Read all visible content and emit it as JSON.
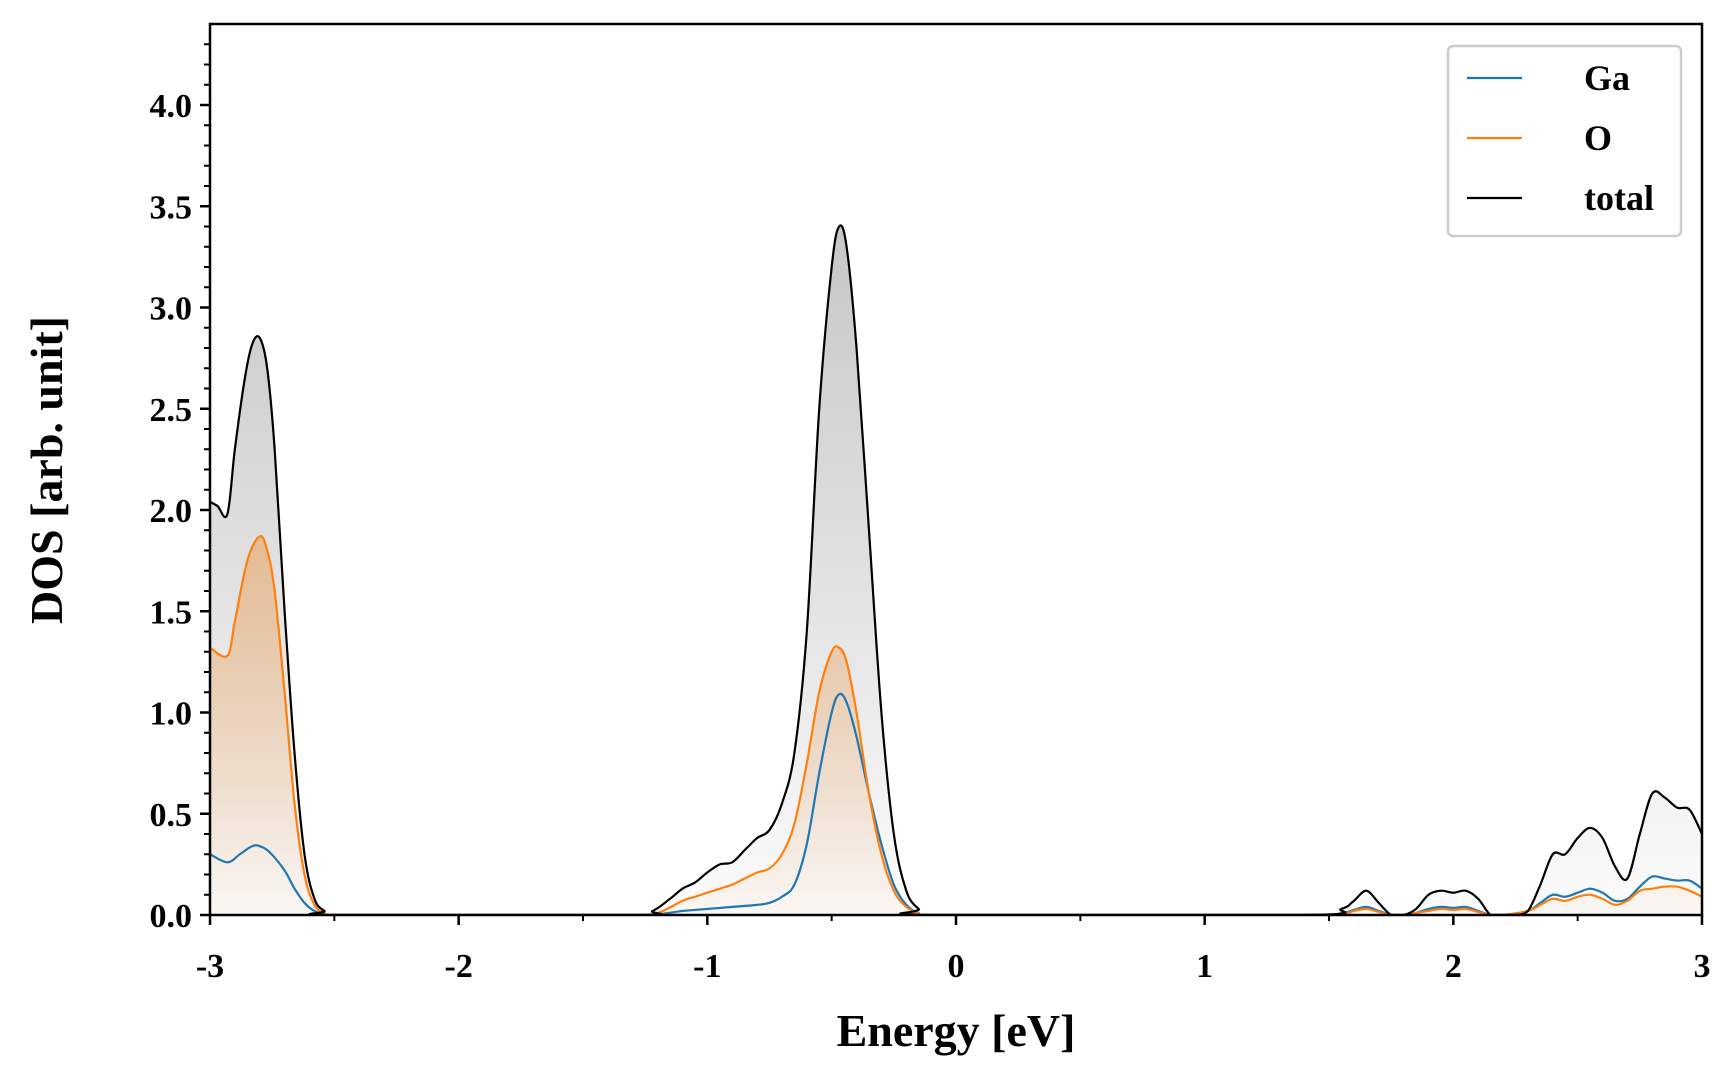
{
  "chart_data": {
    "type": "line",
    "title": "",
    "xlabel": "Energy [eV]",
    "ylabel": "DOS [arb. unit]",
    "xlim": [
      -3,
      3
    ],
    "ylim": [
      0,
      4.4
    ],
    "xticks": [
      -3,
      -2,
      -1,
      0,
      1,
      2,
      3
    ],
    "xtick_labels": [
      "-3",
      "-2",
      "-1",
      "0",
      "1",
      "2",
      "3"
    ],
    "yticks": [
      0,
      0.5,
      1,
      1.5,
      2,
      2.5,
      3,
      3.5,
      4
    ],
    "ytick_labels": [
      "0.0",
      "0.5",
      "1.0",
      "1.5",
      "2.0",
      "2.5",
      "3.0",
      "3.5",
      "4.0"
    ],
    "grid": false,
    "legend_position": "top-right",
    "fill_under_curves": true,
    "series": [
      {
        "name": "Ga",
        "color": "#1f77b4",
        "x": [
          -3.0,
          -2.93,
          -2.88,
          -2.83,
          -2.8,
          -2.76,
          -2.7,
          -2.66,
          -2.62,
          -2.58,
          -2.54,
          -2.5,
          -1.3,
          -1.2,
          -1.1,
          -1.05,
          -1.0,
          -0.9,
          -0.8,
          -0.75,
          -0.7,
          -0.65,
          -0.6,
          -0.55,
          -0.5,
          -0.47,
          -0.44,
          -0.4,
          -0.35,
          -0.3,
          -0.25,
          -0.2,
          -0.15,
          -0.1,
          1.4,
          1.55,
          1.6,
          1.65,
          1.7,
          1.75,
          1.8,
          1.85,
          1.9,
          1.95,
          2.0,
          2.05,
          2.1,
          2.15,
          2.2,
          2.3,
          2.35,
          2.4,
          2.45,
          2.5,
          2.55,
          2.6,
          2.65,
          2.7,
          2.75,
          2.8,
          2.85,
          2.9,
          2.95,
          3.0
        ],
        "values": [
          0.3,
          0.26,
          0.3,
          0.34,
          0.34,
          0.31,
          0.22,
          0.13,
          0.06,
          0.02,
          0.005,
          0.0,
          0.0,
          0.003,
          0.02,
          0.025,
          0.03,
          0.04,
          0.05,
          0.06,
          0.09,
          0.15,
          0.35,
          0.7,
          1.0,
          1.09,
          1.05,
          0.88,
          0.6,
          0.35,
          0.15,
          0.05,
          0.01,
          0.0,
          0.0,
          0.01,
          0.025,
          0.04,
          0.02,
          0.0,
          0.0,
          0.01,
          0.03,
          0.04,
          0.035,
          0.04,
          0.02,
          0.0,
          0.0,
          0.02,
          0.06,
          0.1,
          0.09,
          0.11,
          0.13,
          0.11,
          0.07,
          0.08,
          0.14,
          0.19,
          0.18,
          0.17,
          0.17,
          0.13
        ]
      },
      {
        "name": "O",
        "color": "#ff7f0e",
        "x": [
          -3.0,
          -2.93,
          -2.9,
          -2.85,
          -2.8,
          -2.77,
          -2.74,
          -2.7,
          -2.66,
          -2.62,
          -2.58,
          -2.54,
          -2.5,
          -1.3,
          -1.2,
          -1.1,
          -1.05,
          -1.0,
          -0.95,
          -0.9,
          -0.85,
          -0.8,
          -0.75,
          -0.7,
          -0.65,
          -0.6,
          -0.55,
          -0.5,
          -0.47,
          -0.44,
          -0.4,
          -0.35,
          -0.3,
          -0.25,
          -0.2,
          -0.15,
          -0.1,
          1.4,
          1.55,
          1.6,
          1.65,
          1.7,
          1.75,
          1.8,
          1.85,
          1.9,
          1.95,
          2.0,
          2.05,
          2.1,
          2.15,
          2.2,
          2.3,
          2.35,
          2.4,
          2.45,
          2.5,
          2.55,
          2.6,
          2.65,
          2.7,
          2.75,
          2.8,
          2.85,
          2.9,
          2.95,
          3.0
        ],
        "values": [
          1.32,
          1.28,
          1.45,
          1.75,
          1.87,
          1.8,
          1.6,
          1.1,
          0.55,
          0.2,
          0.05,
          0.01,
          0.0,
          0.0,
          0.01,
          0.07,
          0.09,
          0.11,
          0.13,
          0.15,
          0.18,
          0.21,
          0.23,
          0.3,
          0.45,
          0.75,
          1.1,
          1.3,
          1.32,
          1.25,
          1.0,
          0.6,
          0.3,
          0.12,
          0.04,
          0.01,
          0.0,
          0.0,
          0.005,
          0.02,
          0.03,
          0.015,
          0.0,
          0.0,
          0.01,
          0.02,
          0.03,
          0.025,
          0.03,
          0.015,
          0.0,
          0.0,
          0.02,
          0.05,
          0.08,
          0.07,
          0.09,
          0.1,
          0.08,
          0.05,
          0.07,
          0.12,
          0.13,
          0.14,
          0.14,
          0.12,
          0.09
        ]
      },
      {
        "name": "total",
        "color": "#000000",
        "x": [
          -3.0,
          -2.97,
          -2.93,
          -2.9,
          -2.86,
          -2.83,
          -2.8,
          -2.77,
          -2.74,
          -2.7,
          -2.66,
          -2.62,
          -2.58,
          -2.54,
          -2.5,
          -1.3,
          -1.22,
          -1.15,
          -1.1,
          -1.05,
          -1.0,
          -0.95,
          -0.9,
          -0.85,
          -0.8,
          -0.75,
          -0.7,
          -0.65,
          -0.6,
          -0.55,
          -0.5,
          -0.47,
          -0.44,
          -0.4,
          -0.35,
          -0.3,
          -0.25,
          -0.2,
          -0.15,
          -0.1,
          1.4,
          1.55,
          1.6,
          1.65,
          1.7,
          1.75,
          1.8,
          1.85,
          1.9,
          1.95,
          2.0,
          2.05,
          2.1,
          2.15,
          2.2,
          2.25,
          2.3,
          2.35,
          2.4,
          2.45,
          2.5,
          2.55,
          2.6,
          2.65,
          2.7,
          2.75,
          2.8,
          2.85,
          2.9,
          2.95,
          3.0
        ],
        "values": [
          2.04,
          2.02,
          1.98,
          2.3,
          2.65,
          2.82,
          2.85,
          2.7,
          2.3,
          1.5,
          0.8,
          0.3,
          0.08,
          0.02,
          0.0,
          0.0,
          0.02,
          0.08,
          0.13,
          0.16,
          0.21,
          0.25,
          0.26,
          0.32,
          0.38,
          0.42,
          0.55,
          0.8,
          1.4,
          2.5,
          3.2,
          3.4,
          3.3,
          2.8,
          1.9,
          1.0,
          0.4,
          0.12,
          0.03,
          0.0,
          0.0,
          0.03,
          0.07,
          0.12,
          0.06,
          0.0,
          0.0,
          0.03,
          0.1,
          0.12,
          0.11,
          0.12,
          0.08,
          0.0,
          0.0,
          0.0,
          0.02,
          0.15,
          0.3,
          0.3,
          0.38,
          0.43,
          0.38,
          0.24,
          0.18,
          0.4,
          0.6,
          0.58,
          0.53,
          0.52,
          0.4
        ]
      }
    ]
  }
}
